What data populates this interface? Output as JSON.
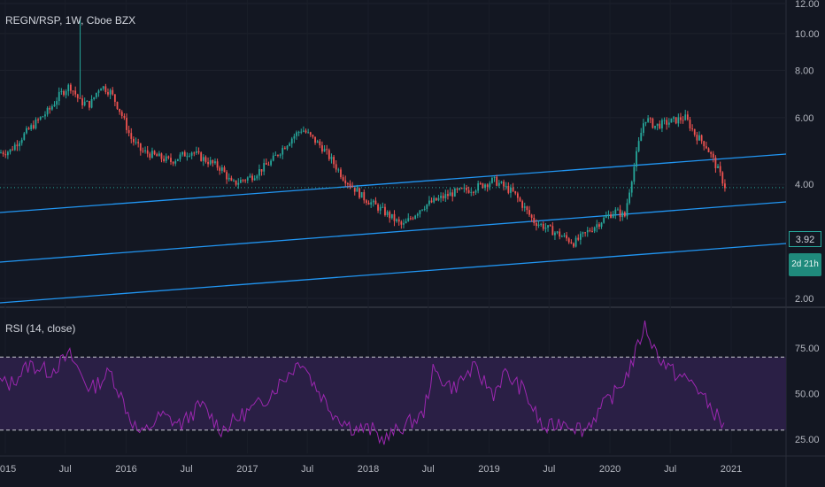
{
  "header": {
    "symbol_title": "REGN/RSP, 1W, Cboe BZX",
    "rsi_title": "RSI (14, close)"
  },
  "last_price": {
    "label": "3.92",
    "timer": "2d 21h"
  },
  "colors": {
    "background": "#131722",
    "up": "#26a69a",
    "down": "#ef5350",
    "channel": "#2196f3",
    "rsi": "#9c27b0",
    "rsi_band": "#2a1f45"
  },
  "chart_data": [
    {
      "type": "candlestick",
      "title": "REGN/RSP, 1W, Cboe BZX",
      "y_scale": "log",
      "y_ticks": [
        "2.00",
        "4.00",
        "6.00",
        "8.00",
        "10.00",
        "12.00"
      ],
      "x_ticks": [
        "2015",
        "Jul",
        "2016",
        "Jul",
        "2017",
        "Jul",
        "2018",
        "Jul",
        "2019",
        "Jul",
        "2020",
        "Jul",
        "2021"
      ],
      "approx_close_path": [
        {
          "date": "2014-11",
          "close": 4.8
        },
        {
          "date": "2015-01",
          "close": 4.9
        },
        {
          "date": "2015-03",
          "close": 5.6
        },
        {
          "date": "2015-05",
          "close": 6.3
        },
        {
          "date": "2015-06",
          "close": 6.9
        },
        {
          "date": "2015-07",
          "close": 7.3
        },
        {
          "date": "2015-08",
          "close": 6.6
        },
        {
          "date": "2015-09",
          "close": 6.5
        },
        {
          "date": "2015-10",
          "close": 7.3
        },
        {
          "date": "2015-11",
          "close": 7.0
        },
        {
          "date": "2015-12",
          "close": 6.2
        },
        {
          "date": "2016-01",
          "close": 5.3
        },
        {
          "date": "2016-02",
          "close": 4.9
        },
        {
          "date": "2016-03",
          "close": 4.8
        },
        {
          "date": "2016-05",
          "close": 4.6
        },
        {
          "date": "2016-07",
          "close": 4.9
        },
        {
          "date": "2016-08",
          "close": 4.7
        },
        {
          "date": "2016-10",
          "close": 4.4
        },
        {
          "date": "2016-11",
          "close": 4.0
        },
        {
          "date": "2017-01",
          "close": 4.2
        },
        {
          "date": "2017-03",
          "close": 4.6
        },
        {
          "date": "2017-05",
          "close": 5.3
        },
        {
          "date": "2017-06",
          "close": 5.6
        },
        {
          "date": "2017-07",
          "close": 5.3
        },
        {
          "date": "2017-08",
          "close": 5.0
        },
        {
          "date": "2017-10",
          "close": 4.2
        },
        {
          "date": "2017-12",
          "close": 3.7
        },
        {
          "date": "2018-02",
          "close": 3.4
        },
        {
          "date": "2018-04",
          "close": 3.1
        },
        {
          "date": "2018-06",
          "close": 3.5
        },
        {
          "date": "2018-08",
          "close": 3.7
        },
        {
          "date": "2018-09",
          "close": 3.8
        },
        {
          "date": "2018-11",
          "close": 3.9
        },
        {
          "date": "2019-01",
          "close": 4.1
        },
        {
          "date": "2019-03",
          "close": 3.8
        },
        {
          "date": "2019-05",
          "close": 3.2
        },
        {
          "date": "2019-07",
          "close": 3.0
        },
        {
          "date": "2019-09",
          "close": 2.8
        },
        {
          "date": "2019-11",
          "close": 3.1
        },
        {
          "date": "2020-01",
          "close": 3.4
        },
        {
          "date": "2020-02",
          "close": 3.3
        },
        {
          "date": "2020-03",
          "close": 4.5
        },
        {
          "date": "2020-04",
          "close": 6.0
        },
        {
          "date": "2020-05",
          "close": 5.7
        },
        {
          "date": "2020-06",
          "close": 5.8
        },
        {
          "date": "2020-07",
          "close": 5.9
        },
        {
          "date": "2020-08",
          "close": 6.0
        },
        {
          "date": "2020-09",
          "close": 5.4
        },
        {
          "date": "2020-10",
          "close": 5.1
        },
        {
          "date": "2020-11",
          "close": 4.5
        },
        {
          "date": "2020-12",
          "close": 3.92
        }
      ],
      "spike": {
        "date": "2015-08",
        "high": 11.0
      },
      "annotations": "three parallel ascending channel lines"
    },
    {
      "type": "line",
      "title": "RSI (14, close)",
      "ylim": [
        22,
        90
      ],
      "y_ticks": [
        "25.00",
        "50.00",
        "75.00"
      ],
      "bands": {
        "upper": 70,
        "lower": 30
      },
      "series": [
        {
          "values": [
            {
              "date": "2014-11",
              "v": 58
            },
            {
              "date": "2015-01",
              "v": 55
            },
            {
              "date": "2015-03",
              "v": 66
            },
            {
              "date": "2015-05",
              "v": 62
            },
            {
              "date": "2015-07",
              "v": 71
            },
            {
              "date": "2015-09",
              "v": 52
            },
            {
              "date": "2015-11",
              "v": 62
            },
            {
              "date": "2016-01",
              "v": 36
            },
            {
              "date": "2016-02",
              "v": 27
            },
            {
              "date": "2016-04",
              "v": 38
            },
            {
              "date": "2016-06",
              "v": 33
            },
            {
              "date": "2016-08",
              "v": 44
            },
            {
              "date": "2016-10",
              "v": 30
            },
            {
              "date": "2016-12",
              "v": 38
            },
            {
              "date": "2017-02",
              "v": 45
            },
            {
              "date": "2017-04",
              "v": 57
            },
            {
              "date": "2017-06",
              "v": 69
            },
            {
              "date": "2017-07",
              "v": 57
            },
            {
              "date": "2017-09",
              "v": 40
            },
            {
              "date": "2017-11",
              "v": 31
            },
            {
              "date": "2018-01",
              "v": 30
            },
            {
              "date": "2018-02",
              "v": 24
            },
            {
              "date": "2018-04",
              "v": 32
            },
            {
              "date": "2018-06",
              "v": 38
            },
            {
              "date": "2018-07",
              "v": 62
            },
            {
              "date": "2018-09",
              "v": 53
            },
            {
              "date": "2018-11",
              "v": 64
            },
            {
              "date": "2019-01",
              "v": 50
            },
            {
              "date": "2019-02",
              "v": 61
            },
            {
              "date": "2019-04",
              "v": 52
            },
            {
              "date": "2019-06",
              "v": 30
            },
            {
              "date": "2019-08",
              "v": 35
            },
            {
              "date": "2019-10",
              "v": 30
            },
            {
              "date": "2019-12",
              "v": 44
            },
            {
              "date": "2020-01",
              "v": 50
            },
            {
              "date": "2020-02",
              "v": 58
            },
            {
              "date": "2020-03",
              "v": 70
            },
            {
              "date": "2020-04",
              "v": 88
            },
            {
              "date": "2020-05",
              "v": 74
            },
            {
              "date": "2020-06",
              "v": 66
            },
            {
              "date": "2020-07",
              "v": 61
            },
            {
              "date": "2020-09",
              "v": 55
            },
            {
              "date": "2020-10",
              "v": 46
            },
            {
              "date": "2020-11",
              "v": 39
            },
            {
              "date": "2020-12",
              "v": 30
            }
          ]
        }
      ]
    }
  ]
}
